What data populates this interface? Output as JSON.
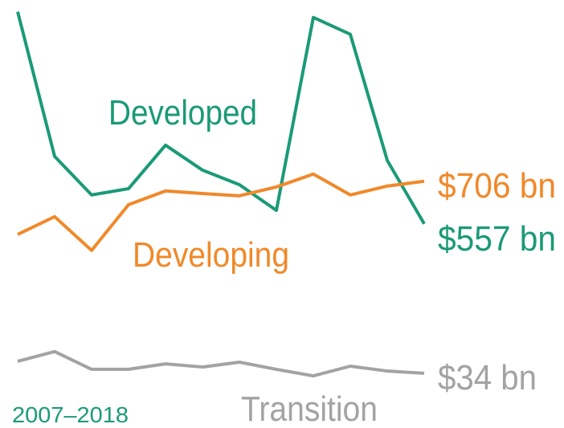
{
  "chart_data": {
    "type": "line",
    "subtitle": "2007–2018",
    "ylim": [
      0,
      1340
    ],
    "series": [
      {
        "name": "Developed",
        "color": "#1b9a77",
        "values": [
          1299,
          793,
          658,
          680,
          832,
          745,
          694,
          604,
          1279,
          1220,
          779,
          557
        ],
        "value_labels": [
          null,
          null,
          null,
          null,
          null,
          null,
          null,
          null,
          null,
          null,
          null,
          "$557 bn"
        ]
      },
      {
        "name": "Developing",
        "color": "#f0892a",
        "values": [
          520,
          582,
          464,
          624,
          672,
          663,
          655,
          686,
          731,
          658,
          689,
          706
        ],
        "value_labels": [
          null,
          null,
          null,
          null,
          null,
          null,
          null,
          null,
          null,
          null,
          null,
          "$706 bn"
        ]
      },
      {
        "name": "Transition",
        "color": "#a3a3a3",
        "values": [
          76,
          110,
          48,
          48,
          67,
          56,
          73,
          48,
          25,
          59,
          42,
          34
        ],
        "value_labels": [
          null,
          null,
          null,
          null,
          null,
          null,
          null,
          null,
          null,
          null,
          null,
          "$34 bn"
        ]
      }
    ]
  }
}
